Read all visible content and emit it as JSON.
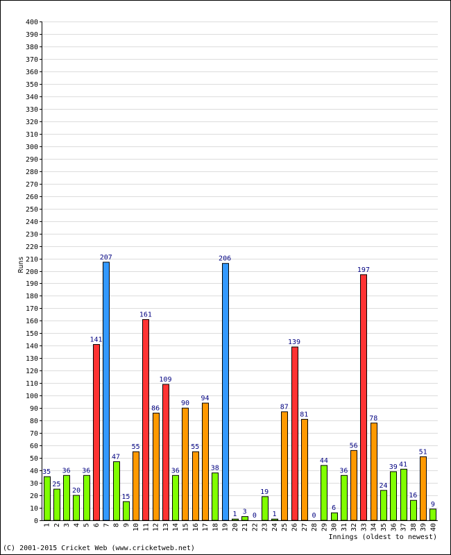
{
  "chart_data": {
    "type": "bar",
    "xlabel": "Innings (oldest to newest)",
    "ylabel": "Runs",
    "ylim": [
      0,
      400
    ],
    "ytick_step": 10,
    "grid": true,
    "categories": [
      "1",
      "2",
      "3",
      "4",
      "5",
      "6",
      "7",
      "8",
      "9",
      "10",
      "11",
      "12",
      "13",
      "14",
      "15",
      "16",
      "17",
      "18",
      "19",
      "20",
      "21",
      "22",
      "23",
      "24",
      "25",
      "26",
      "27",
      "28",
      "29",
      "30",
      "31",
      "32",
      "33",
      "34",
      "35",
      "36",
      "37",
      "38",
      "39",
      "40"
    ],
    "values": [
      35,
      25,
      36,
      20,
      36,
      141,
      207,
      47,
      15,
      55,
      161,
      86,
      109,
      36,
      90,
      55,
      94,
      38,
      206,
      1,
      3,
      0,
      19,
      1,
      87,
      139,
      81,
      0,
      44,
      6,
      36,
      56,
      197,
      78,
      24,
      39,
      41,
      16,
      51,
      9
    ],
    "colors": [
      "#80ff00",
      "#80ff00",
      "#80ff00",
      "#80ff00",
      "#80ff00",
      "#ff3333",
      "#3399ff",
      "#80ff00",
      "#80ff00",
      "#ff9900",
      "#ff3333",
      "#ff9900",
      "#ff3333",
      "#80ff00",
      "#ff9900",
      "#ff9900",
      "#ff9900",
      "#80ff00",
      "#3399ff",
      "#80ff00",
      "#80ff00",
      "#80ff00",
      "#80ff00",
      "#80ff00",
      "#ff9900",
      "#ff3333",
      "#ff9900",
      "#80ff00",
      "#80ff00",
      "#80ff00",
      "#80ff00",
      "#ff9900",
      "#ff3333",
      "#ff9900",
      "#80ff00",
      "#80ff00",
      "#80ff00",
      "#80ff00",
      "#ff9900",
      "#80ff00"
    ]
  },
  "footer": {
    "copyright": "(C) 2001-2015 Cricket Web (www.cricketweb.net)"
  }
}
